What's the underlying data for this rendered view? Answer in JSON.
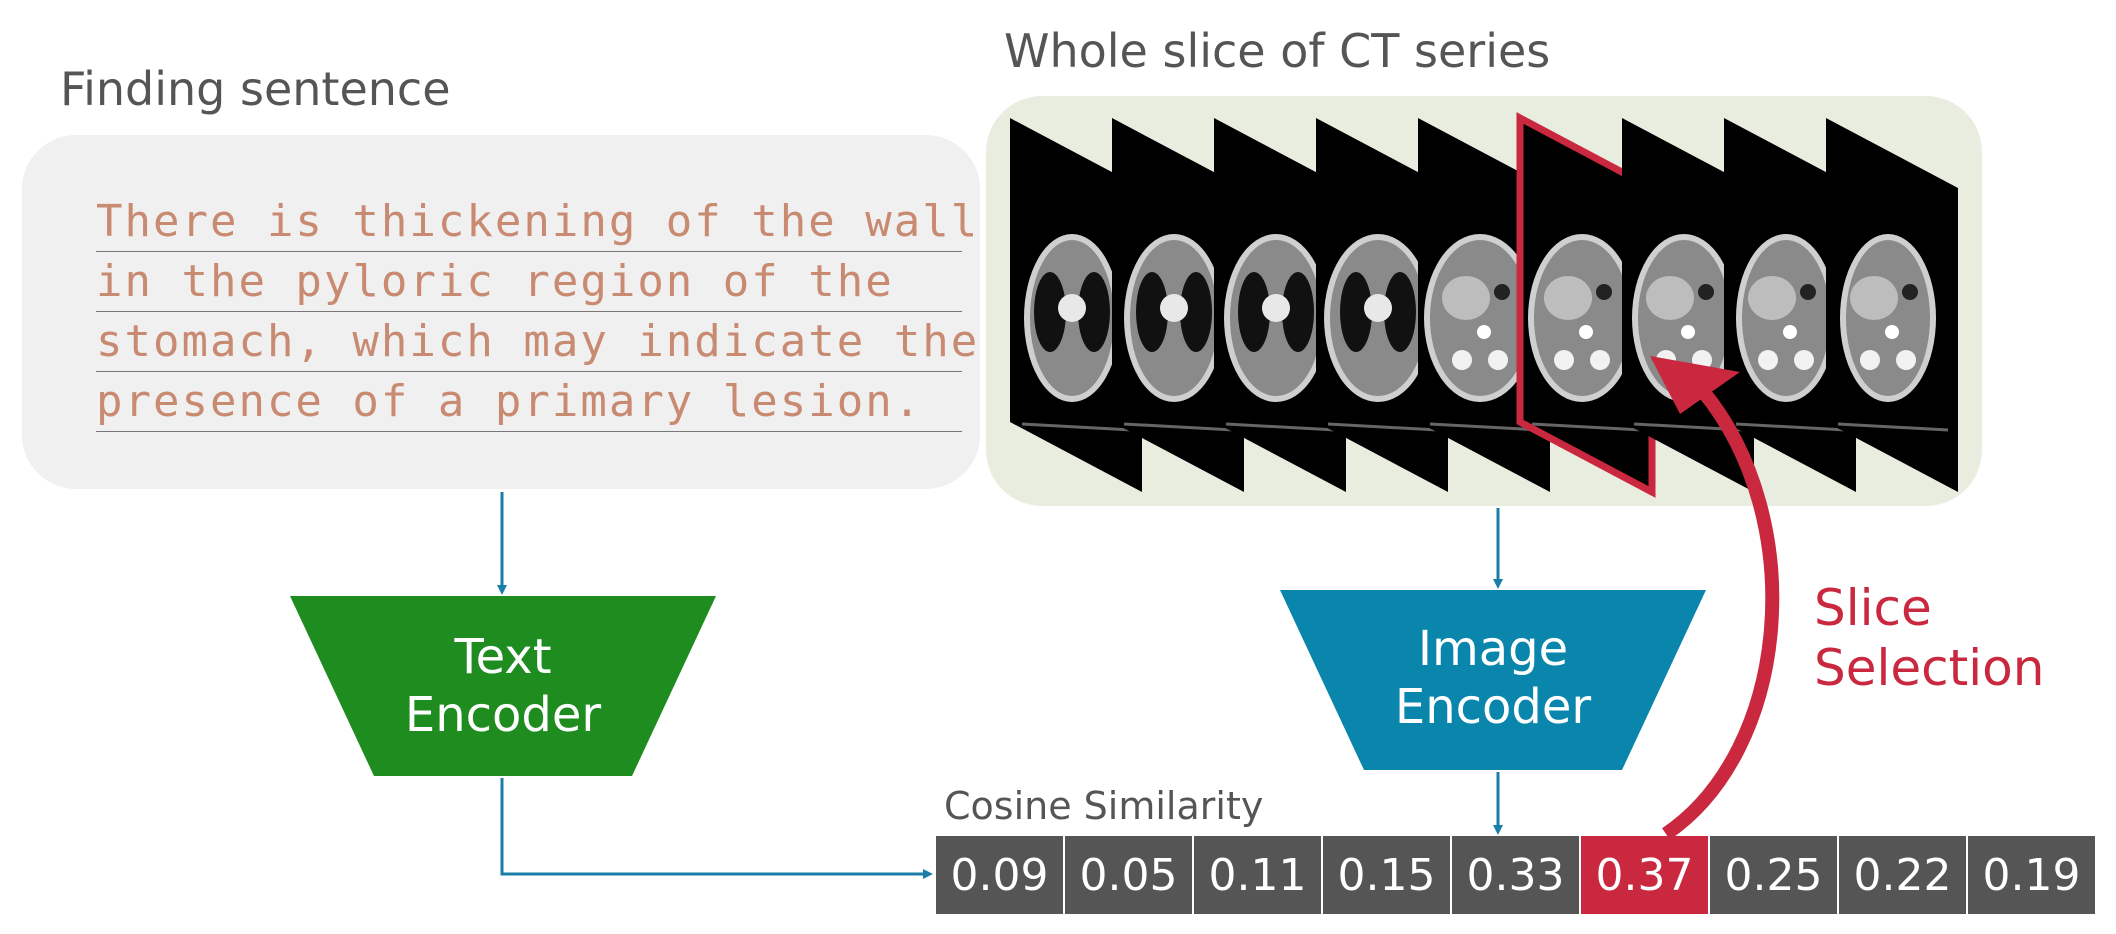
{
  "finding": {
    "title": "Finding sentence",
    "lines": [
      "There is thickening of the wall",
      "in the pyloric region of the",
      "stomach, which may indicate the",
      "presence of a primary lesion."
    ]
  },
  "ct": {
    "title": "Whole slice of CT series",
    "slice_count": 9,
    "selected_index": 5
  },
  "encoders": {
    "text": {
      "line1": "Text",
      "line2": "Encoder",
      "color": "#1e8c1e"
    },
    "image": {
      "line1": "Image",
      "line2": "Encoder",
      "color": "#0a86ad"
    }
  },
  "similarity": {
    "label": "Cosine Similarity",
    "values": [
      "0.09",
      "0.05",
      "0.11",
      "0.15",
      "0.33",
      "0.37",
      "0.25",
      "0.22",
      "0.19"
    ],
    "selected_index": 5
  },
  "slice_selection": {
    "line1": "Slice",
    "line2": "Selection",
    "color": "#c9283e"
  },
  "colors": {
    "arrow": "#1a7fa8",
    "selection": "#c9283e",
    "cell": "#555555"
  }
}
